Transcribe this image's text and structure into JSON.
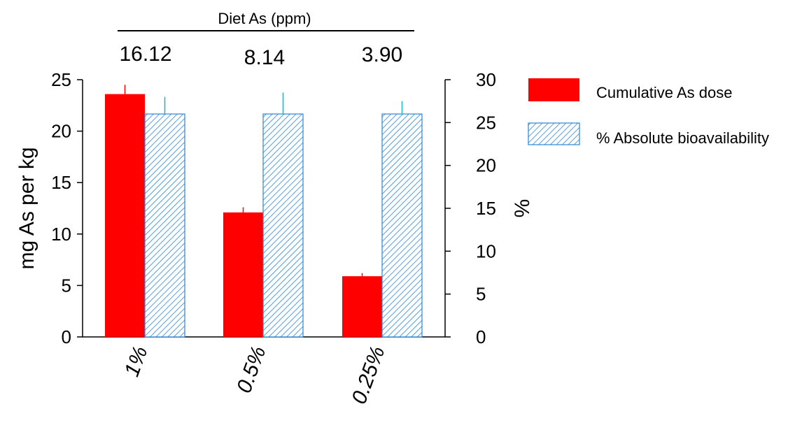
{
  "chart_data": {
    "type": "bar",
    "top_title": "Diet As (ppm)",
    "diet_values": [
      "16.12",
      "8.14",
      "3.90"
    ],
    "categories": [
      "1%",
      "0.5%",
      "0.25%"
    ],
    "ylabel_left": "mg As per kg",
    "ylabel_right": "%",
    "ylim_left": [
      0,
      25
    ],
    "ylim_right": [
      0,
      30
    ],
    "yticks_left": [
      "0",
      "5",
      "10",
      "15",
      "20",
      "25"
    ],
    "yticks_right": [
      "0",
      "5",
      "10",
      "15",
      "20",
      "25",
      "30"
    ],
    "grid": false,
    "legend_position": "right",
    "series": [
      {
        "name": "Cumulative As dose",
        "axis": "left",
        "color": "#ff0000",
        "fill": "solid",
        "values": [
          23.6,
          12.1,
          5.9
        ],
        "error": [
          0.9,
          0.5,
          0.3
        ]
      },
      {
        "name": "% Absolute bioavailability",
        "axis": "right",
        "color": "#1f7fd6",
        "fill": "hatched",
        "values": [
          26.0,
          26.0,
          26.0
        ],
        "error": [
          2.0,
          2.5,
          1.5
        ]
      }
    ]
  }
}
